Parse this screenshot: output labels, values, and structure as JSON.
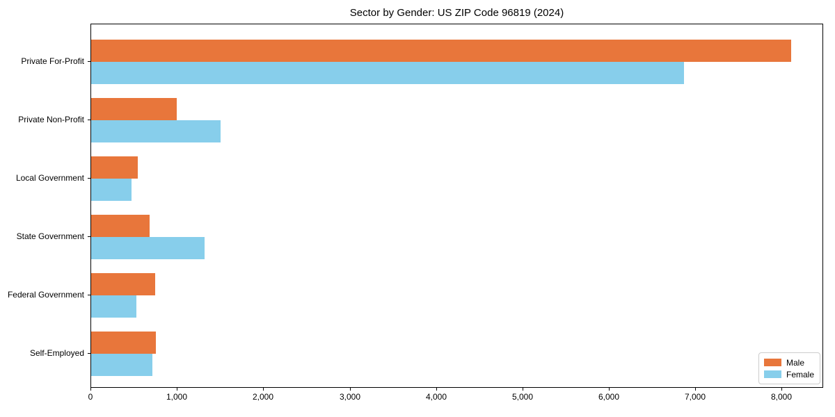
{
  "chart_data": {
    "type": "bar",
    "orientation": "horizontal",
    "title": "Sector by Gender: US ZIP Code 96819 (2024)",
    "categories": [
      "Private For-Profit",
      "Private Non-Profit",
      "Local Government",
      "State Government",
      "Federal Government",
      "Self-Employed"
    ],
    "series": [
      {
        "name": "Male",
        "color": "#e8763b",
        "values": [
          8100,
          990,
          540,
          680,
          740,
          750
        ]
      },
      {
        "name": "Female",
        "color": "#87ceeb",
        "values": [
          6860,
          1500,
          470,
          1310,
          520,
          710
        ]
      }
    ],
    "xlabel": "",
    "ylabel": "",
    "xlim": [
      0,
      8480
    ],
    "xticks": {
      "values": [
        0,
        1000,
        2000,
        3000,
        4000,
        5000,
        6000,
        7000,
        8000
      ],
      "labels": [
        "0",
        "1,000",
        "2,000",
        "3,000",
        "4,000",
        "5,000",
        "6,000",
        "7,000",
        "8,000"
      ]
    },
    "grid": false,
    "legend": {
      "position": "lower right",
      "entries": [
        "Male",
        "Female"
      ]
    }
  }
}
